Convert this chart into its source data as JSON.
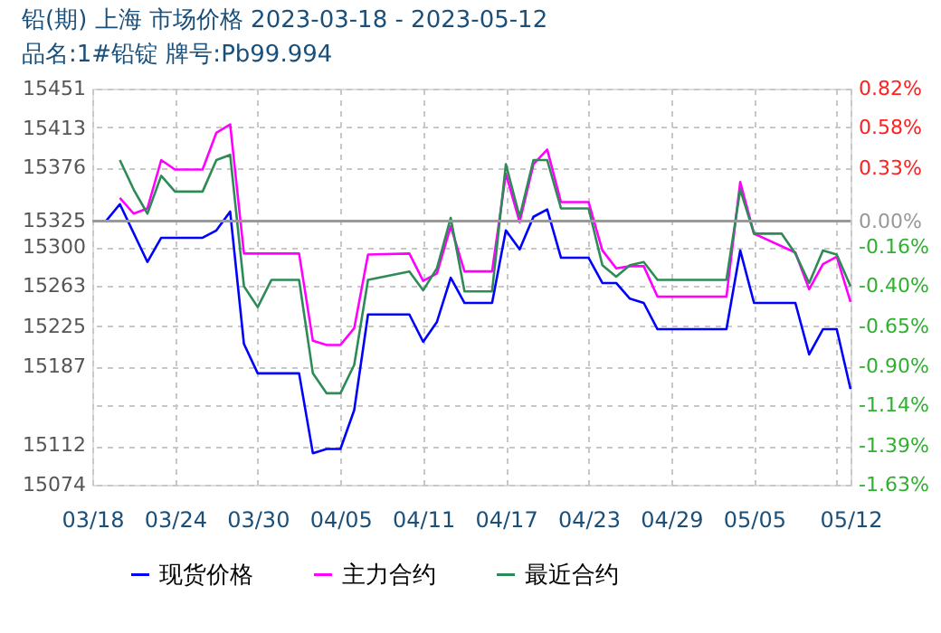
{
  "chart_data": {
    "type": "line",
    "title": "铅(期) 上海 市场价格 2023-03-18 - 2023-05-12",
    "subtitle": "品名:1#铅锭 牌号:Pb99.994",
    "series": [
      {
        "name": "现货价格",
        "color": "#0000ff",
        "x": [
          "2023-03-18",
          "2023-03-19",
          "2023-03-20",
          "2023-03-22",
          "2023-03-23",
          "2023-03-26",
          "2023-03-27",
          "2023-03-28",
          "2023-03-29",
          "2023-03-30",
          "2023-04-02",
          "2023-04-03",
          "2023-04-04",
          "2023-04-05",
          "2023-04-06",
          "2023-04-07",
          "2023-04-10",
          "2023-04-11",
          "2023-04-12",
          "2023-04-13",
          "2023-04-14",
          "2023-04-16",
          "2023-04-17",
          "2023-04-18",
          "2023-04-19",
          "2023-04-20",
          "2023-04-21",
          "2023-04-23",
          "2023-04-24",
          "2023-04-25",
          "2023-04-26",
          "2023-04-27",
          "2023-04-28",
          "2023-05-03",
          "2023-05-04",
          "2023-05-05",
          "2023-05-08",
          "2023-05-09",
          "2023-05-10",
          "2023-05-11",
          "2023-05-12"
        ],
        "values": [
          15325,
          15325,
          15341,
          15286,
          15309,
          15309,
          15316,
          15334,
          15208,
          15180,
          15180,
          15104,
          15108,
          15108,
          15145,
          15236,
          15236,
          15210,
          15229,
          15271,
          15247,
          15247,
          15316,
          15298,
          15329,
          15336,
          15290,
          15290,
          15266,
          15266,
          15251,
          15247,
          15222,
          15222,
          15297,
          15247,
          15247,
          15198,
          15222,
          15222,
          15165
        ]
      },
      {
        "name": "主力合约",
        "color": "#ff00ff",
        "x": [
          "2023-03-20",
          "2023-03-21",
          "2023-03-22",
          "2023-03-23",
          "2023-03-24",
          "2023-03-26",
          "2023-03-27",
          "2023-03-28",
          "2023-03-29",
          "2023-03-30",
          "2023-04-02",
          "2023-04-03",
          "2023-04-04",
          "2023-04-05",
          "2023-04-06",
          "2023-04-07",
          "2023-04-10",
          "2023-04-11",
          "2023-04-12",
          "2023-04-13",
          "2023-04-14",
          "2023-04-16",
          "2023-04-17",
          "2023-04-18",
          "2023-04-19",
          "2023-04-20",
          "2023-04-21",
          "2023-04-23",
          "2023-04-24",
          "2023-04-25",
          "2023-04-26",
          "2023-04-27",
          "2023-04-28",
          "2023-05-03",
          "2023-05-04",
          "2023-05-05",
          "2023-05-08",
          "2023-05-09",
          "2023-05-10",
          "2023-05-11",
          "2023-05-12"
        ],
        "values": [
          15347,
          15332,
          15337,
          15383,
          15374,
          15374,
          15409,
          15417,
          15294,
          15294,
          15294,
          15211,
          15207,
          15207,
          15223,
          15293,
          15294,
          15268,
          15275,
          15320,
          15277,
          15277,
          15370,
          15324,
          15379,
          15393,
          15343,
          15343,
          15297,
          15280,
          15282,
          15282,
          15253,
          15253,
          15362,
          15313,
          15295,
          15260,
          15284,
          15291,
          15248
        ]
      },
      {
        "name": "最近合约",
        "color": "#2e8b57",
        "x": [
          "2023-03-20",
          "2023-03-21",
          "2023-03-22",
          "2023-03-23",
          "2023-03-24",
          "2023-03-26",
          "2023-03-27",
          "2023-03-28",
          "2023-03-29",
          "2023-03-30",
          "2023-03-31",
          "2023-04-02",
          "2023-04-03",
          "2023-04-04",
          "2023-04-05",
          "2023-04-06",
          "2023-04-07",
          "2023-04-10",
          "2023-04-11",
          "2023-04-12",
          "2023-04-13",
          "2023-04-14",
          "2023-04-16",
          "2023-04-17",
          "2023-04-18",
          "2023-04-19",
          "2023-04-20",
          "2023-04-21",
          "2023-04-23",
          "2023-04-24",
          "2023-04-25",
          "2023-04-26",
          "2023-04-27",
          "2023-04-28",
          "2023-05-03",
          "2023-05-04",
          "2023-05-05",
          "2023-05-07",
          "2023-05-08",
          "2023-05-09",
          "2023-05-10",
          "2023-05-11",
          "2023-05-12"
        ],
        "values": [
          15383,
          15355,
          15332,
          15368,
          15353,
          15353,
          15383,
          15388,
          15263,
          15243,
          15269,
          15269,
          15180,
          15161,
          15161,
          15188,
          15269,
          15277,
          15259,
          15280,
          15328,
          15258,
          15258,
          15379,
          15329,
          15383,
          15383,
          15337,
          15337,
          15283,
          15272,
          15283,
          15286,
          15269,
          15269,
          15355,
          15313,
          15313,
          15294,
          15266,
          15297,
          15293,
          15263
        ]
      }
    ],
    "xlim": [
      "2023-03-18",
      "2023-05-12"
    ],
    "xticks": [
      {
        "value": "2023-03-18",
        "label": "03/18"
      },
      {
        "value": "2023-03-24",
        "label": "03/24"
      },
      {
        "value": "2023-03-30",
        "label": "03/30"
      },
      {
        "value": "2023-04-05",
        "label": "04/05"
      },
      {
        "value": "2023-04-11",
        "label": "04/11"
      },
      {
        "value": "2023-04-17",
        "label": "04/17"
      },
      {
        "value": "2023-04-23",
        "label": "04/23"
      },
      {
        "value": "2023-04-29",
        "label": "04/29"
      },
      {
        "value": "2023-05-05",
        "label": "05/05"
      },
      {
        "value": "2023-05-11",
        "label": null
      },
      {
        "value": "2023-05-12",
        "label": "05/12"
      }
    ],
    "ylim": [
      15074,
      15451
    ],
    "yticks": [
      15451,
      15413,
      15376,
      15325,
      15300,
      15263,
      15225,
      15187,
      15112,
      15074
    ],
    "y2lim": [
      -1.63,
      0.82
    ],
    "y2ticks": [
      {
        "value": 0.82,
        "label": "0.82%"
      },
      {
        "value": 0.58,
        "label": "0.58%"
      },
      {
        "value": 0.33,
        "label": "0.33%"
      },
      {
        "value": 0,
        "label": "0.00%"
      },
      {
        "value": -0.16,
        "label": "-0.16%"
      },
      {
        "value": -0.4,
        "label": "-0.40%"
      },
      {
        "value": -0.65,
        "label": "-0.65%"
      },
      {
        "value": -0.9,
        "label": "-0.90%"
      },
      {
        "value": -1.14,
        "label": "-1.14%"
      },
      {
        "value": -1.39,
        "label": "-1.39%"
      },
      {
        "value": -1.63,
        "label": "-1.63%"
      }
    ],
    "ref_lines": [
      {
        "axis": "y2",
        "value": 0,
        "color": "#999999"
      }
    ],
    "grid": true,
    "legend": "bottom",
    "marker": "none",
    "line_style": "solid"
  }
}
